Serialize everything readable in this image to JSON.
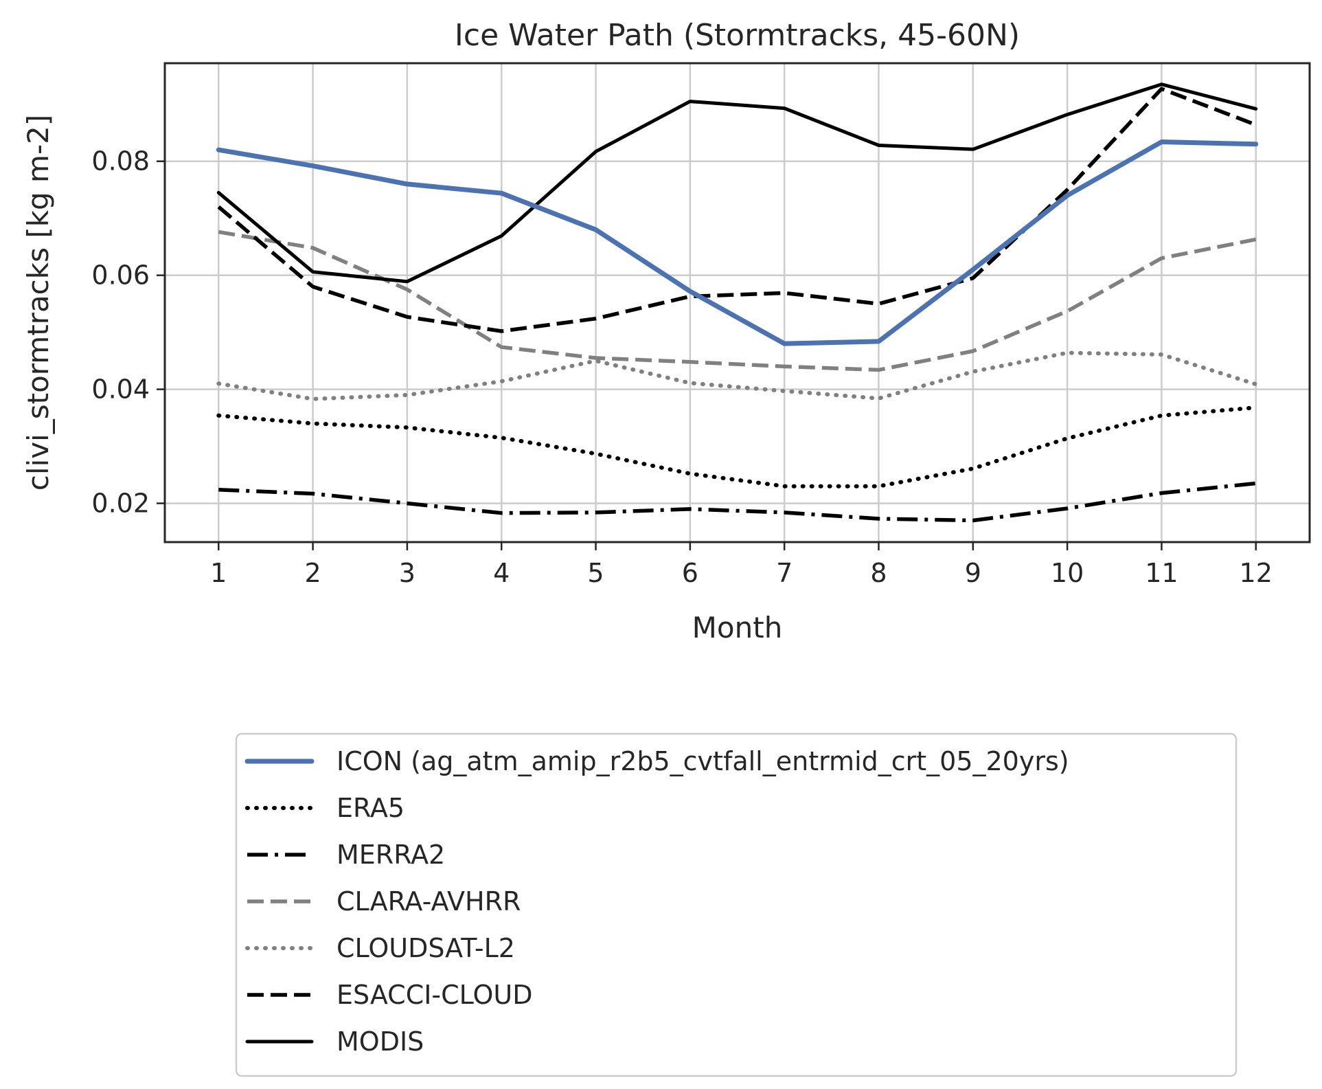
{
  "chart_data": {
    "type": "line",
    "title": "Ice Water Path (Stormtracks, 45-60N)",
    "xlabel": "Month",
    "ylabel": "clivi_stormtracks [kg m-2]",
    "x": [
      1,
      2,
      3,
      4,
      5,
      6,
      7,
      8,
      9,
      10,
      11,
      12
    ],
    "x_ticks": [
      "1",
      "2",
      "3",
      "4",
      "5",
      "6",
      "7",
      "8",
      "9",
      "10",
      "11",
      "12"
    ],
    "y_ticks": [
      "0.02",
      "0.04",
      "0.06",
      "0.08"
    ],
    "xlim": [
      0.43,
      12.57
    ],
    "ylim": [
      0.0132,
      0.0972
    ],
    "grid": true,
    "legend_position": "below-center",
    "series": [
      {
        "name": "ICON (ag_atm_amip_r2b5_cvtfall_entrmid_crt_05_20yrs)",
        "color": "#4c72b0",
        "style": "solid-thick",
        "values": [
          0.082,
          0.0792,
          0.076,
          0.0744,
          0.068,
          0.0572,
          0.048,
          0.0484,
          0.061,
          0.074,
          0.0834,
          0.083
        ]
      },
      {
        "name": "ERA5",
        "color": "#000000",
        "style": "dotted",
        "values": [
          0.0354,
          0.034,
          0.0333,
          0.0315,
          0.0287,
          0.0252,
          0.023,
          0.023,
          0.0261,
          0.0314,
          0.0354,
          0.0368
        ]
      },
      {
        "name": "MERRA2",
        "color": "#000000",
        "style": "dashdot",
        "values": [
          0.0224,
          0.0217,
          0.02,
          0.0183,
          0.0184,
          0.019,
          0.0184,
          0.0173,
          0.017,
          0.0191,
          0.0218,
          0.0235
        ]
      },
      {
        "name": "CLARA-AVHRR",
        "color": "#808080",
        "style": "dashed",
        "values": [
          0.0676,
          0.0648,
          0.0575,
          0.0474,
          0.0455,
          0.0448,
          0.044,
          0.0434,
          0.0467,
          0.0537,
          0.063,
          0.0663
        ]
      },
      {
        "name": "CLOUDSAT-L2",
        "color": "#808080",
        "style": "dotted",
        "values": [
          0.041,
          0.0383,
          0.039,
          0.0414,
          0.045,
          0.0411,
          0.0397,
          0.0384,
          0.0431,
          0.0464,
          0.0461,
          0.0409
        ]
      },
      {
        "name": "ESACCI-CLOUD",
        "color": "#000000",
        "style": "dashed",
        "values": [
          0.072,
          0.058,
          0.0527,
          0.0502,
          0.0524,
          0.0563,
          0.0569,
          0.055,
          0.0595,
          0.075,
          0.0927,
          0.0864
        ]
      },
      {
        "name": "MODIS",
        "color": "#000000",
        "style": "solid",
        "values": [
          0.0745,
          0.0606,
          0.0589,
          0.0669,
          0.0817,
          0.0905,
          0.0893,
          0.0828,
          0.0821,
          0.0882,
          0.0935,
          0.0892
        ]
      }
    ]
  }
}
